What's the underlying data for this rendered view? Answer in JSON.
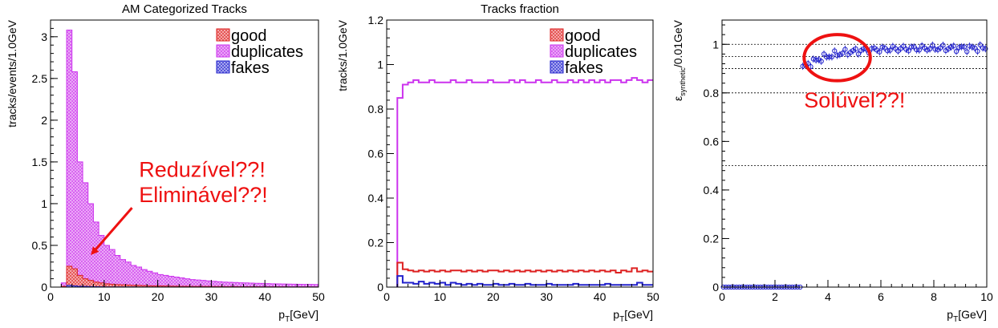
{
  "colors": {
    "good": "#dd2222",
    "duplicates": "#cc33ee",
    "fakes": "#2222cc",
    "annotation": "#ee1111",
    "good_fill": "#f2a0a0",
    "dup_fill": "#e9a6f5"
  },
  "chart_data": [
    {
      "type": "bar",
      "title": "AM Categorized Tracks",
      "xlabel": "p_T[GeV]",
      "ylabel": "tracks/events/1.0GeV",
      "xlim": [
        0,
        50
      ],
      "ylim": [
        0,
        3.2
      ],
      "xticks": [
        "0",
        "10",
        "20",
        "30",
        "40",
        "50"
      ],
      "yticks": [
        "0",
        "0.5",
        "1",
        "1.5",
        "2",
        "2.5",
        "3"
      ],
      "legend": {
        "placement": "top-right",
        "entries": [
          "good",
          "duplicates",
          "fakes"
        ]
      },
      "bin_width": 1,
      "x_start": 2,
      "series": [
        {
          "name": "duplicates",
          "values": [
            0.05,
            3.08,
            2.58,
            1.5,
            1.25,
            1.0,
            0.78,
            0.62,
            0.5,
            0.45,
            0.38,
            0.33,
            0.3,
            0.26,
            0.24,
            0.21,
            0.19,
            0.17,
            0.15,
            0.14,
            0.13,
            0.12,
            0.11,
            0.1,
            0.09,
            0.085,
            0.08,
            0.075,
            0.07,
            0.065,
            0.06,
            0.058,
            0.055,
            0.052,
            0.05,
            0.048,
            0.046,
            0.044,
            0.042,
            0.04,
            0.038,
            0.037,
            0.036,
            0.035,
            0.034,
            0.033,
            0.032,
            0.031
          ]
        },
        {
          "name": "good",
          "values": [
            0.01,
            0.25,
            0.22,
            0.14,
            0.1,
            0.08,
            0.06,
            0.05,
            0.04,
            0.035,
            0.03,
            0.028,
            0.025,
            0.022,
            0.02,
            0.018,
            0.016,
            0.015,
            0.014,
            0.013,
            0.012,
            0.011,
            0.01,
            0.01,
            0.009,
            0.009,
            0.008,
            0.008,
            0.007,
            0.007,
            0.006,
            0.006,
            0.006,
            0.005,
            0.005,
            0.005,
            0.005,
            0.004,
            0.004,
            0.004,
            0.004,
            0.004,
            0.003,
            0.003,
            0.003,
            0.003,
            0.003,
            0.003
          ]
        },
        {
          "name": "fakes",
          "values": [
            0,
            0.02,
            0.015,
            0.01,
            0.008,
            0.006,
            0.005,
            0.004,
            0.003,
            0.003,
            0.002,
            0.002,
            0.002,
            0.002,
            0.001,
            0.001,
            0.001,
            0.001,
            0.001,
            0.001,
            0.001,
            0.001,
            0.001,
            0.001,
            0.001,
            0.001,
            0.001,
            0.001,
            0.001,
            0.001,
            0.001,
            0.001,
            0.001,
            0.001,
            0.001,
            0.001,
            0.001,
            0.001,
            0.001,
            0.001,
            0.001,
            0.001,
            0.001,
            0.001,
            0.001,
            0.001,
            0.001,
            0.001
          ]
        }
      ],
      "annotations": [
        {
          "text": "Reduzível??!",
          "at": [
            16.5,
            1.32
          ]
        },
        {
          "text": "Eliminável??!",
          "at": [
            16.5,
            1.02
          ]
        }
      ],
      "arrow": {
        "from": [
          15.2,
          0.95
        ],
        "to": [
          8.0,
          0.42
        ]
      }
    },
    {
      "type": "line",
      "title": "Tracks fraction",
      "xlabel": "p_T[GeV]",
      "ylabel": "tracks/1.0GeV",
      "xlim": [
        0,
        50
      ],
      "ylim": [
        0,
        1.2
      ],
      "xticks": [
        "0",
        "10",
        "20",
        "30",
        "40",
        "50"
      ],
      "yticks": [
        "0",
        "0.2",
        "0.4",
        "0.6",
        "0.8",
        "1",
        "1.2"
      ],
      "legend": {
        "placement": "top-right",
        "entries": [
          "good",
          "duplicates",
          "fakes"
        ]
      },
      "bin_width": 1,
      "x_start": 2,
      "series": [
        {
          "name": "duplicates",
          "values": [
            0.85,
            0.91,
            0.92,
            0.93,
            0.92,
            0.92,
            0.93,
            0.92,
            0.92,
            0.92,
            0.93,
            0.92,
            0.92,
            0.93,
            0.92,
            0.92,
            0.92,
            0.93,
            0.92,
            0.92,
            0.92,
            0.93,
            0.92,
            0.93,
            0.92,
            0.92,
            0.93,
            0.92,
            0.92,
            0.93,
            0.92,
            0.92,
            0.93,
            0.92,
            0.93,
            0.92,
            0.93,
            0.92,
            0.93,
            0.92,
            0.93,
            0.93,
            0.92,
            0.93,
            0.94,
            0.93,
            0.92,
            0.93
          ]
        },
        {
          "name": "good",
          "values": [
            0.11,
            0.08,
            0.075,
            0.07,
            0.075,
            0.07,
            0.075,
            0.07,
            0.075,
            0.07,
            0.075,
            0.075,
            0.07,
            0.075,
            0.07,
            0.075,
            0.07,
            0.075,
            0.075,
            0.07,
            0.075,
            0.07,
            0.075,
            0.07,
            0.075,
            0.07,
            0.075,
            0.07,
            0.075,
            0.07,
            0.075,
            0.07,
            0.075,
            0.07,
            0.075,
            0.07,
            0.075,
            0.07,
            0.075,
            0.07,
            0.075,
            0.065,
            0.075,
            0.07,
            0.085,
            0.07,
            0.075,
            0.07
          ]
        },
        {
          "name": "fakes",
          "values": [
            0.05,
            0.02,
            0.02,
            0.015,
            0.025,
            0.015,
            0.02,
            0.015,
            0.02,
            0.01,
            0.02,
            0.015,
            0.01,
            0.015,
            0.01,
            0.015,
            0.01,
            0.01,
            0.015,
            0.01,
            0.01,
            0.015,
            0.01,
            0.01,
            0.015,
            0.01,
            0.01,
            0.01,
            0.015,
            0.01,
            0.01,
            0.01,
            0.01,
            0.015,
            0.01,
            0.01,
            0.01,
            0.01,
            0.01,
            0.015,
            0.01,
            0.01,
            0.01,
            0.01,
            0.01,
            0.02,
            0.01,
            0.01
          ]
        }
      ]
    },
    {
      "type": "scatter",
      "title": "",
      "xlabel": "p_T[GeV]",
      "ylabel": "ε_synthetic/0.01GeV",
      "ylabel_main": "ε",
      "ylabel_sub": "synthetic",
      "ylabel_tail": "/0.01GeV",
      "xlim": [
        0,
        10
      ],
      "ylim": [
        0,
        1.1
      ],
      "xticks": [
        "0",
        "2",
        "4",
        "6",
        "8",
        "10"
      ],
      "yticks": [
        "0",
        "0.2",
        "0.4",
        "0.6",
        "0.8",
        "1"
      ],
      "ref_lines": [
        1.0,
        0.95,
        0.9,
        0.8,
        0.5
      ],
      "series": [
        {
          "name": "",
          "x_low": [
            0.0,
            3.0
          ],
          "low_value": 0.0,
          "x_high": [
            3.0,
            10.0
          ]
        }
      ],
      "annotations": [
        {
          "text": "Solúvel??!",
          "at": [
            3.1,
            0.74
          ]
        }
      ],
      "ellipse": {
        "center": [
          4.35,
          0.945
        ],
        "rx": 1.25,
        "ry": 0.095
      }
    }
  ]
}
